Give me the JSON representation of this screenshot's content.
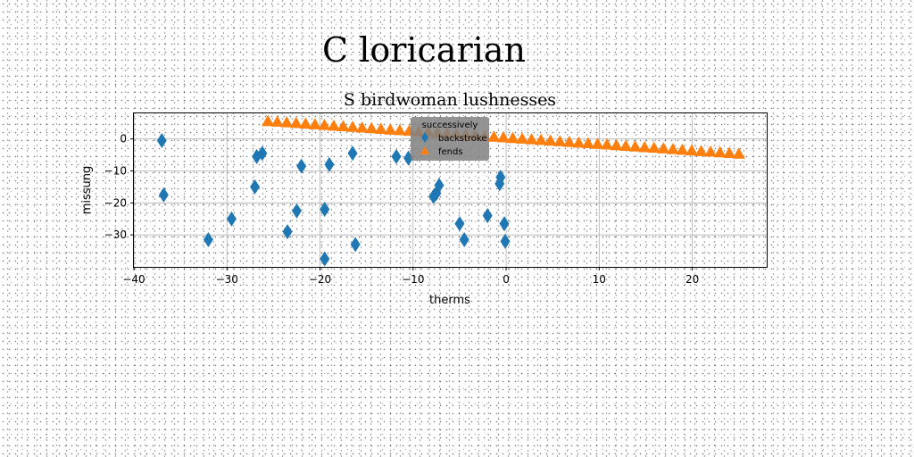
{
  "figure_title": "C loricarian",
  "chart_data": {
    "type": "scatter",
    "title": "S birdwoman lushnesses",
    "xlabel": "therms",
    "ylabel": "missung",
    "xlim": [
      -40,
      28
    ],
    "ylim": [
      -40,
      8
    ],
    "xticks": [
      -40,
      -30,
      -20,
      -10,
      0,
      10,
      20
    ],
    "yticks": [
      0,
      -10,
      -20,
      -30
    ],
    "grid": true,
    "legend": {
      "title": "successively",
      "placement": "top-center",
      "background": "#808080"
    },
    "series": [
      {
        "name": "backstroke",
        "marker": "diamond",
        "color": "#1f77b4",
        "x": [
          -37,
          -36.8,
          -32,
          -29.5,
          -27,
          -26.8,
          -26.2,
          -23.5,
          -22.5,
          -22,
          -19.5,
          -19.5,
          -19,
          -16.5,
          -16.2,
          -11.8,
          -10.5,
          -7.8,
          -7.5,
          -7.2,
          -5,
          -4.5,
          -2,
          -0.7,
          -0.6,
          -0.2,
          -0.1
        ],
        "y": [
          -0.5,
          -17.5,
          -31.5,
          -25,
          -15,
          -5.5,
          -4.5,
          -29,
          -22.5,
          -8.5,
          -37.5,
          -22,
          -8,
          -4.5,
          -33,
          -5.5,
          -6,
          -18,
          -17,
          -14.5,
          -26.5,
          -31.5,
          -24,
          -14,
          -12,
          -26.5,
          -32
        ]
      },
      {
        "name": "fends",
        "marker": "triangle",
        "color": "#ff7f0e",
        "x_start": -25.6,
        "x_end": 25.0,
        "count": 51,
        "y_start": 5.6,
        "y_end": -4.6
      }
    ]
  }
}
